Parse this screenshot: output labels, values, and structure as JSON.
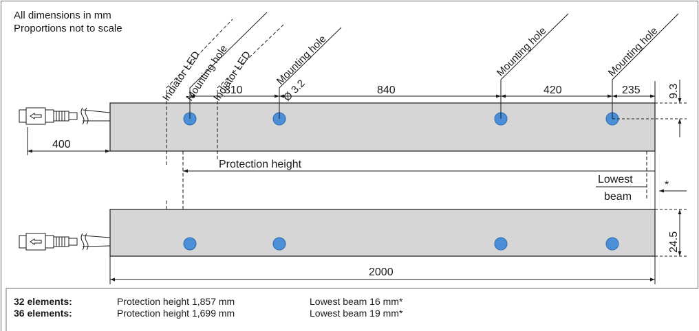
{
  "notes": {
    "line1": "All dimensions in mm",
    "line2": "Proportions not to scale"
  },
  "callouts": {
    "indicator_led": "Indiator LED",
    "mounting_hole": "Mounting hole",
    "hole_diameter": "Ø 3.2",
    "protection_height": "Protection height",
    "lowest_beam_line1": "Lowest",
    "lowest_beam_line2": "beam",
    "asterisk": "*"
  },
  "dimensions": {
    "cable_length": "400",
    "hole_spacing_1": "310",
    "hole_spacing_2": "840",
    "hole_spacing_3": "420",
    "end_offset": "235",
    "hole_vertical_offset": "9.3",
    "profile_height": "24.5",
    "total_length": "2000"
  },
  "variants": [
    {
      "label": "32 elements:",
      "protection_height": "Protection height 1,857 mm",
      "lowest_beam": "Lowest beam 16 mm*"
    },
    {
      "label": "36 elements:",
      "protection_height": "Protection height 1,699 mm",
      "lowest_beam": "Lowest beam 19 mm*"
    }
  ],
  "colors": {
    "bar_fill": "#d6d6d6",
    "hole_fill": "#4a8fd8",
    "line": "#1a1a1a",
    "frame": "#888888"
  }
}
